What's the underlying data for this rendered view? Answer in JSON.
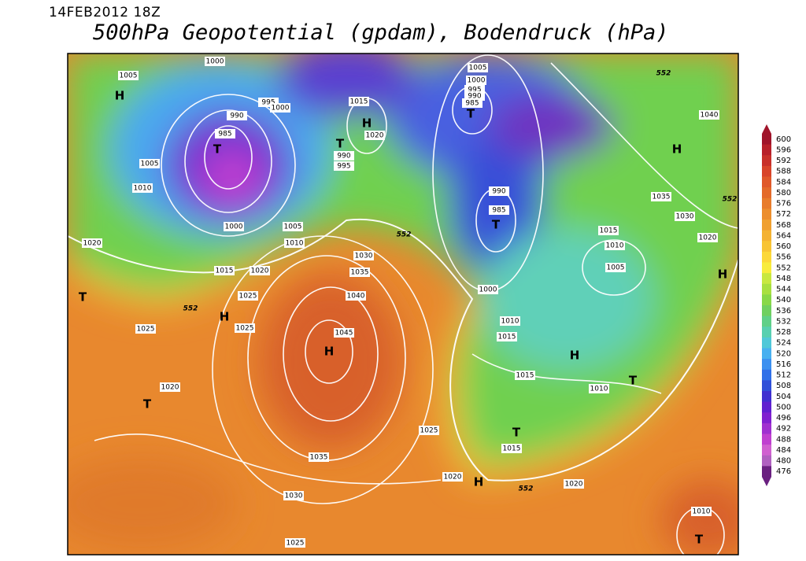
{
  "header": {
    "date": "14FEB2012 18Z",
    "title": "500hPa Geopotential (gpdam), Bodendruck (hPa)"
  },
  "isobar_labels": [
    1000,
    1005,
    995,
    1000,
    990,
    985,
    1005,
    1010,
    1000,
    1005,
    1010,
    1020,
    1015,
    1020,
    1025,
    1025,
    1025,
    1030,
    1035,
    1040,
    1045,
    1015,
    1020,
    990,
    995,
    1005,
    1000,
    995,
    990,
    985,
    990,
    985,
    1000,
    1010,
    1015,
    1015,
    1010,
    1005,
    1040,
    1035,
    1030,
    1020,
    1015,
    1010,
    1020,
    1035,
    1030,
    1025,
    1025,
    1015,
    1020,
    1020,
    1010
  ],
  "contour_labels": [
    552,
    552,
    552,
    552,
    552
  ],
  "pressure_centers": [
    "H",
    "H",
    "H",
    "H",
    "H",
    "H",
    "H",
    "H",
    "T",
    "T",
    "T",
    "T",
    "T",
    "T",
    "T",
    "T",
    "T"
  ],
  "colorbar": {
    "ticks": [
      600,
      596,
      592,
      588,
      584,
      580,
      576,
      572,
      568,
      564,
      560,
      556,
      552,
      548,
      544,
      540,
      536,
      532,
      528,
      524,
      520,
      516,
      512,
      508,
      504,
      500,
      496,
      492,
      488,
      484,
      480,
      476
    ],
    "colors": [
      "#a0142a",
      "#b8202a",
      "#c8302a",
      "#d8442a",
      "#e0582a",
      "#e46a2a",
      "#e87c2c",
      "#ec8e2e",
      "#f0a030",
      "#f4b232",
      "#f8c434",
      "#fcd838",
      "#f8ec3c",
      "#c8e840",
      "#a8e040",
      "#88d848",
      "#70d060",
      "#60d088",
      "#58d0b0",
      "#50c8d8",
      "#48b0f0",
      "#3c90f0",
      "#3070e8",
      "#3050d8",
      "#4030d0",
      "#6020d0",
      "#8020d0",
      "#a030d0",
      "#c040d0",
      "#d060d0",
      "#b060c0",
      "#6a2080"
    ]
  }
}
